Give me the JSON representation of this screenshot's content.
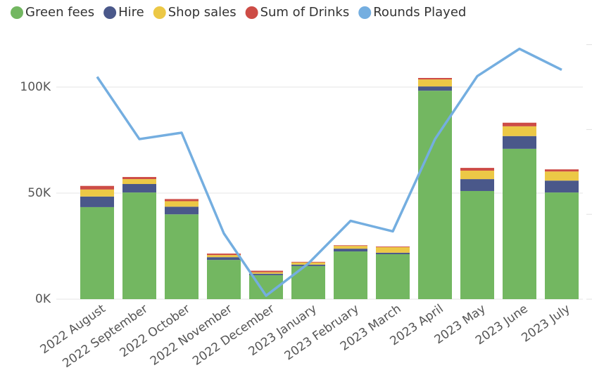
{
  "chart_data": {
    "type": "bar_line",
    "categories": [
      "2022 August",
      "2022 September",
      "2022 October",
      "2022 November",
      "2022 December",
      "2023 January",
      "2023 February",
      "2023 March",
      "2023 April",
      "2023 May",
      "2023 June",
      "2023 July"
    ],
    "series": [
      {
        "name": "Green fees",
        "color": "#73b761",
        "values": [
          43400,
          50300,
          40000,
          18500,
          11300,
          15600,
          22500,
          21200,
          98300,
          51000,
          70900,
          50300
        ]
      },
      {
        "name": "Hire",
        "color": "#4a588a",
        "values": [
          5000,
          4000,
          3600,
          1300,
          700,
          700,
          1300,
          700,
          2000,
          5600,
          6000,
          5600
        ]
      },
      {
        "name": "Shop sales",
        "color": "#ecc846",
        "values": [
          3300,
          2300,
          2600,
          1000,
          700,
          1000,
          1300,
          2600,
          3300,
          4000,
          4600,
          4300
        ]
      },
      {
        "name": "Sum of Drinks",
        "color": "#cd4c46",
        "values": [
          1700,
          1000,
          1000,
          700,
          700,
          300,
          300,
          300,
          700,
          1300,
          1700,
          1000
        ]
      },
      {
        "name": "Rounds Played",
        "color": "#74aee0",
        "axis": "y2",
        "values": [
          2621,
          1887,
          1962,
          775,
          41,
          420,
          923,
          799,
          1887,
          2629,
          2951,
          2703
        ]
      }
    ],
    "ylim": [
      0,
      120000
    ],
    "yticks": [
      {
        "value": 0,
        "label": "0K"
      },
      {
        "value": 50000,
        "label": "50K"
      },
      {
        "value": 100000,
        "label": "100K"
      }
    ],
    "y2lim": [
      0,
      3000
    ],
    "y2ticks": [
      0,
      1000,
      2000,
      3000
    ],
    "grid": true,
    "legend": "top"
  }
}
